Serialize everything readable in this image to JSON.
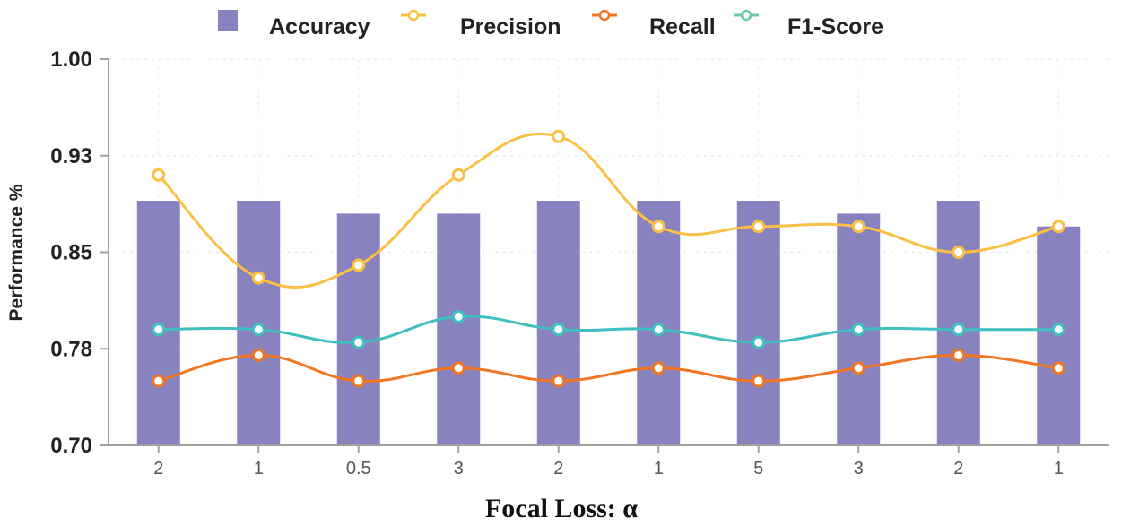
{
  "chart_data": {
    "type": "bar",
    "title": "",
    "xlabel": "Focal Loss: α",
    "ylabel": "Performance %",
    "categories": [
      "2",
      "1",
      "0.5",
      "3",
      "2",
      "1",
      "5",
      "3",
      "2",
      "1"
    ],
    "ylim": [
      0.7,
      1.0
    ],
    "yticks": [
      "0.70",
      "0.78",
      "0.85",
      "0.93",
      "1.00"
    ],
    "ytick_values": [
      0.7,
      0.775,
      0.85,
      0.925,
      1.0
    ],
    "grid": true,
    "legend_position": "top",
    "series": [
      {
        "name": "Accuracy",
        "kind": "bar",
        "color": "#8882be",
        "values": [
          0.89,
          0.89,
          0.88,
          0.88,
          0.89,
          0.89,
          0.89,
          0.88,
          0.89,
          0.87
        ]
      },
      {
        "name": "Precision",
        "kind": "line",
        "color": "#fbbf45",
        "values": [
          0.91,
          0.83,
          0.84,
          0.91,
          0.94,
          0.87,
          0.87,
          0.87,
          0.85,
          0.87
        ]
      },
      {
        "name": "Recall",
        "kind": "line",
        "color": "#f27521",
        "values": [
          0.75,
          0.77,
          0.75,
          0.76,
          0.75,
          0.76,
          0.75,
          0.76,
          0.77,
          0.76
        ]
      },
      {
        "name": "F1-Score",
        "kind": "line",
        "color": "#3fbfbf",
        "values": [
          0.79,
          0.79,
          0.78,
          0.8,
          0.79,
          0.79,
          0.78,
          0.79,
          0.79,
          0.79
        ]
      }
    ]
  },
  "legend": {
    "items": [
      {
        "label": "Accuracy",
        "color": "#8882be",
        "marker": "square"
      },
      {
        "label": "Precision",
        "color": "#fbbf45",
        "marker": "line-circle"
      },
      {
        "label": "Recall",
        "color": "#f27521",
        "marker": "line-circle"
      },
      {
        "label": "F1-Score",
        "color": "#6cc9a4",
        "marker": "line-circle"
      }
    ]
  }
}
